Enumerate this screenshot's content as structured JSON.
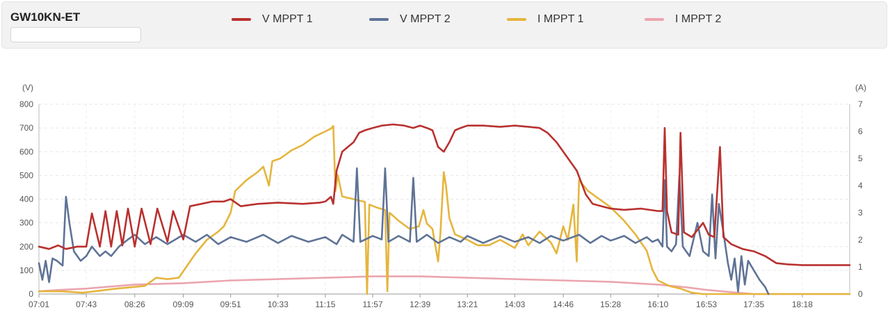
{
  "header": {
    "device_name": "GW10KN-ET",
    "search_placeholder": ""
  },
  "legend": [
    {
      "label": "V MPPT 1",
      "color": "#b8312f"
    },
    {
      "label": "V MPPT 2",
      "color": "#5f7396"
    },
    {
      "label": "I MPPT 1",
      "color": "#e5b53d"
    },
    {
      "label": "I MPPT 2",
      "color": "#eba5ae"
    }
  ],
  "chart_data": {
    "type": "line",
    "left_axis": {
      "unit": "(V)",
      "min": 0,
      "max": 800,
      "ticks": [
        0,
        100,
        200,
        300,
        400,
        500,
        600,
        700,
        800
      ]
    },
    "right_axis": {
      "unit": "(A)",
      "min": 0,
      "max": 7,
      "ticks": [
        0,
        1,
        2,
        3,
        4,
        5,
        6,
        7
      ]
    },
    "x_tick_labels": [
      "07:01",
      "07:43",
      "08:26",
      "09:09",
      "09:51",
      "10:33",
      "11:15",
      "11:57",
      "12:39",
      "13:21",
      "14:03",
      "14:46",
      "15:28",
      "16:10",
      "16:53",
      "17:35",
      "18:18"
    ],
    "x_range": [
      "07:01",
      "19:00"
    ],
    "grid": true,
    "series": [
      {
        "name": "V MPPT 1",
        "axis": "left",
        "points": [
          [
            "07:01",
            200
          ],
          [
            "07:10",
            190
          ],
          [
            "07:18",
            205
          ],
          [
            "07:25",
            190
          ],
          [
            "07:35",
            200
          ],
          [
            "07:43",
            200
          ],
          [
            "07:48",
            340
          ],
          [
            "07:55",
            200
          ],
          [
            "08:00",
            350
          ],
          [
            "08:05",
            200
          ],
          [
            "08:10",
            350
          ],
          [
            "08:15",
            205
          ],
          [
            "08:20",
            360
          ],
          [
            "08:26",
            200
          ],
          [
            "08:32",
            360
          ],
          [
            "08:40",
            210
          ],
          [
            "08:46",
            360
          ],
          [
            "08:55",
            220
          ],
          [
            "09:00",
            350
          ],
          [
            "09:09",
            230
          ],
          [
            "09:15",
            370
          ],
          [
            "09:25",
            380
          ],
          [
            "09:35",
            390
          ],
          [
            "09:45",
            390
          ],
          [
            "09:51",
            400
          ],
          [
            "10:00",
            370
          ],
          [
            "10:15",
            380
          ],
          [
            "10:33",
            385
          ],
          [
            "10:55",
            380
          ],
          [
            "11:10",
            385
          ],
          [
            "11:15",
            390
          ],
          [
            "11:20",
            410
          ],
          [
            "11:22",
            380
          ],
          [
            "11:25",
            520
          ],
          [
            "11:30",
            600
          ],
          [
            "11:35",
            620
          ],
          [
            "11:40",
            640
          ],
          [
            "11:45",
            680
          ],
          [
            "11:50",
            690
          ],
          [
            "11:57",
            700
          ],
          [
            "12:05",
            710
          ],
          [
            "12:15",
            715
          ],
          [
            "12:25",
            710
          ],
          [
            "12:33",
            700
          ],
          [
            "12:39",
            710
          ],
          [
            "12:45",
            700
          ],
          [
            "12:50",
            690
          ],
          [
            "12:55",
            620
          ],
          [
            "13:00",
            600
          ],
          [
            "13:05",
            640
          ],
          [
            "13:10",
            690
          ],
          [
            "13:15",
            700
          ],
          [
            "13:21",
            710
          ],
          [
            "13:35",
            710
          ],
          [
            "13:50",
            705
          ],
          [
            "14:03",
            710
          ],
          [
            "14:15",
            705
          ],
          [
            "14:25",
            700
          ],
          [
            "14:32",
            680
          ],
          [
            "14:40",
            640
          ],
          [
            "14:46",
            600
          ],
          [
            "14:52",
            560
          ],
          [
            "14:58",
            520
          ],
          [
            "15:02",
            470
          ],
          [
            "15:06",
            420
          ],
          [
            "15:12",
            380
          ],
          [
            "15:20",
            370
          ],
          [
            "15:28",
            360
          ],
          [
            "15:40",
            355
          ],
          [
            "15:55",
            360
          ],
          [
            "16:10",
            350
          ],
          [
            "16:14",
            350
          ],
          [
            "16:16",
            700
          ],
          [
            "16:18",
            350
          ],
          [
            "16:22",
            260
          ],
          [
            "16:28",
            250
          ],
          [
            "16:30",
            680
          ],
          [
            "16:33",
            260
          ],
          [
            "16:40",
            240
          ],
          [
            "16:50",
            300
          ],
          [
            "16:55",
            250
          ],
          [
            "17:00",
            240
          ],
          [
            "17:05",
            620
          ],
          [
            "17:08",
            240
          ],
          [
            "17:15",
            210
          ],
          [
            "17:25",
            190
          ],
          [
            "17:35",
            180
          ],
          [
            "17:45",
            160
          ],
          [
            "17:55",
            130
          ],
          [
            "18:05",
            125
          ],
          [
            "18:18",
            122
          ],
          [
            "18:40",
            122
          ],
          [
            "19:00",
            122
          ]
        ]
      },
      {
        "name": "V MPPT 2",
        "axis": "left",
        "points": [
          [
            "07:01",
            130
          ],
          [
            "07:04",
            60
          ],
          [
            "07:07",
            140
          ],
          [
            "07:10",
            50
          ],
          [
            "07:13",
            150
          ],
          [
            "07:17",
            140
          ],
          [
            "07:22",
            120
          ],
          [
            "07:25",
            410
          ],
          [
            "07:28",
            300
          ],
          [
            "07:32",
            180
          ],
          [
            "07:38",
            140
          ],
          [
            "07:43",
            160
          ],
          [
            "07:48",
            200
          ],
          [
            "07:55",
            160
          ],
          [
            "08:00",
            180
          ],
          [
            "08:05",
            160
          ],
          [
            "08:12",
            200
          ],
          [
            "08:20",
            230
          ],
          [
            "08:26",
            250
          ],
          [
            "08:35",
            210
          ],
          [
            "08:45",
            240
          ],
          [
            "08:55",
            210
          ],
          [
            "09:09",
            250
          ],
          [
            "09:20",
            220
          ],
          [
            "09:30",
            250
          ],
          [
            "09:40",
            210
          ],
          [
            "09:51",
            240
          ],
          [
            "10:05",
            220
          ],
          [
            "10:20",
            250
          ],
          [
            "10:33",
            215
          ],
          [
            "10:45",
            245
          ],
          [
            "11:00",
            220
          ],
          [
            "11:15",
            240
          ],
          [
            "11:25",
            210
          ],
          [
            "11:30",
            250
          ],
          [
            "11:40",
            220
          ],
          [
            "11:43",
            530
          ],
          [
            "11:46",
            220
          ],
          [
            "11:57",
            245
          ],
          [
            "12:05",
            230
          ],
          [
            "12:08",
            530
          ],
          [
            "12:11",
            220
          ],
          [
            "12:20",
            245
          ],
          [
            "12:30",
            220
          ],
          [
            "12:33",
            490
          ],
          [
            "12:36",
            220
          ],
          [
            "12:45",
            250
          ],
          [
            "12:55",
            215
          ],
          [
            "13:05",
            240
          ],
          [
            "13:15",
            220
          ],
          [
            "13:21",
            245
          ],
          [
            "13:35",
            215
          ],
          [
            "13:50",
            245
          ],
          [
            "14:03",
            220
          ],
          [
            "14:15",
            240
          ],
          [
            "14:25",
            215
          ],
          [
            "14:35",
            245
          ],
          [
            "14:46",
            225
          ],
          [
            "15:00",
            250
          ],
          [
            "15:10",
            215
          ],
          [
            "15:20",
            245
          ],
          [
            "15:28",
            225
          ],
          [
            "15:40",
            245
          ],
          [
            "15:50",
            215
          ],
          [
            "16:00",
            240
          ],
          [
            "16:05",
            220
          ],
          [
            "16:10",
            230
          ],
          [
            "16:14",
            200
          ],
          [
            "16:16",
            480
          ],
          [
            "16:18",
            200
          ],
          [
            "16:22",
            180
          ],
          [
            "16:26",
            210
          ],
          [
            "16:29",
            500
          ],
          [
            "16:32",
            200
          ],
          [
            "16:38",
            160
          ],
          [
            "16:45",
            300
          ],
          [
            "16:50",
            180
          ],
          [
            "16:55",
            160
          ],
          [
            "16:58",
            420
          ],
          [
            "17:01",
            150
          ],
          [
            "17:04",
            380
          ],
          [
            "17:08",
            260
          ],
          [
            "17:12",
            130
          ],
          [
            "17:15",
            60
          ],
          [
            "17:18",
            150
          ],
          [
            "17:21",
            10
          ],
          [
            "17:24",
            160
          ],
          [
            "17:27",
            40
          ],
          [
            "17:30",
            140
          ],
          [
            "17:35",
            100
          ],
          [
            "17:40",
            60
          ],
          [
            "17:45",
            30
          ],
          [
            "17:48",
            0
          ]
        ]
      },
      {
        "name": "I MPPT 1",
        "axis": "right",
        "points": [
          [
            "07:01",
            0.1
          ],
          [
            "07:20",
            0.1
          ],
          [
            "07:40",
            0.05
          ],
          [
            "08:10",
            0.2
          ],
          [
            "08:35",
            0.3
          ],
          [
            "08:45",
            0.6
          ],
          [
            "08:55",
            0.55
          ],
          [
            "09:05",
            0.6
          ],
          [
            "09:10",
            0.9
          ],
          [
            "09:20",
            1.5
          ],
          [
            "09:30",
            2.0
          ],
          [
            "09:40",
            2.3
          ],
          [
            "09:45",
            2.5
          ],
          [
            "09:51",
            3.0
          ],
          [
            "09:55",
            3.8
          ],
          [
            "10:05",
            4.2
          ],
          [
            "10:15",
            4.5
          ],
          [
            "10:20",
            4.7
          ],
          [
            "10:25",
            4.0
          ],
          [
            "10:28",
            4.9
          ],
          [
            "10:35",
            5.0
          ],
          [
            "10:45",
            5.3
          ],
          [
            "10:55",
            5.5
          ],
          [
            "11:05",
            5.8
          ],
          [
            "11:15",
            6.0
          ],
          [
            "11:20",
            6.1
          ],
          [
            "11:22",
            6.2
          ],
          [
            "11:24",
            3.8
          ],
          [
            "11:26",
            4.4
          ],
          [
            "11:30",
            3.6
          ],
          [
            "11:40",
            3.5
          ],
          [
            "11:50",
            3.4
          ],
          [
            "11:52",
            0.0
          ],
          [
            "11:54",
            3.3
          ],
          [
            "12:00",
            3.2
          ],
          [
            "12:08",
            3.1
          ],
          [
            "12:10",
            0.1
          ],
          [
            "12:12",
            3.0
          ],
          [
            "12:20",
            2.7
          ],
          [
            "12:30",
            2.4
          ],
          [
            "12:38",
            2.5
          ],
          [
            "12:42",
            3.1
          ],
          [
            "12:45",
            2.6
          ],
          [
            "12:50",
            2.4
          ],
          [
            "12:55",
            1.2
          ],
          [
            "12:57",
            2.2
          ],
          [
            "13:00",
            4.5
          ],
          [
            "13:02",
            4.0
          ],
          [
            "13:05",
            2.8
          ],
          [
            "13:10",
            2.2
          ],
          [
            "13:21",
            2.0
          ],
          [
            "13:30",
            1.8
          ],
          [
            "13:40",
            1.8
          ],
          [
            "13:50",
            2.0
          ],
          [
            "14:03",
            1.7
          ],
          [
            "14:10",
            2.2
          ],
          [
            "14:15",
            1.8
          ],
          [
            "14:25",
            2.3
          ],
          [
            "14:35",
            1.9
          ],
          [
            "14:40",
            1.5
          ],
          [
            "14:46",
            2.5
          ],
          [
            "14:50",
            2.0
          ],
          [
            "14:55",
            3.3
          ],
          [
            "14:58",
            1.2
          ],
          [
            "15:00",
            4.2
          ],
          [
            "15:08",
            3.8
          ],
          [
            "15:18",
            3.5
          ],
          [
            "15:28",
            3.2
          ],
          [
            "15:40",
            2.7
          ],
          [
            "15:50",
            2.2
          ],
          [
            "16:00",
            1.6
          ],
          [
            "16:05",
            0.9
          ],
          [
            "16:10",
            0.5
          ],
          [
            "16:20",
            0.3
          ],
          [
            "16:30",
            0.2
          ],
          [
            "16:40",
            0.05
          ],
          [
            "16:50",
            0.0
          ],
          [
            "19:00",
            0.0
          ]
        ]
      },
      {
        "name": "I MPPT 2",
        "axis": "right",
        "points": [
          [
            "07:01",
            0.1
          ],
          [
            "07:20",
            0.15
          ],
          [
            "07:43",
            0.2
          ],
          [
            "08:26",
            0.35
          ],
          [
            "09:09",
            0.4
          ],
          [
            "09:51",
            0.5
          ],
          [
            "10:33",
            0.55
          ],
          [
            "11:15",
            0.6
          ],
          [
            "11:57",
            0.65
          ],
          [
            "12:39",
            0.65
          ],
          [
            "13:21",
            0.6
          ],
          [
            "14:03",
            0.55
          ],
          [
            "14:46",
            0.5
          ],
          [
            "15:28",
            0.45
          ],
          [
            "16:10",
            0.35
          ],
          [
            "16:35",
            0.25
          ],
          [
            "16:53",
            0.15
          ],
          [
            "17:20",
            0.05
          ],
          [
            "17:35",
            0.0
          ],
          [
            "19:00",
            0.0
          ]
        ]
      }
    ]
  }
}
